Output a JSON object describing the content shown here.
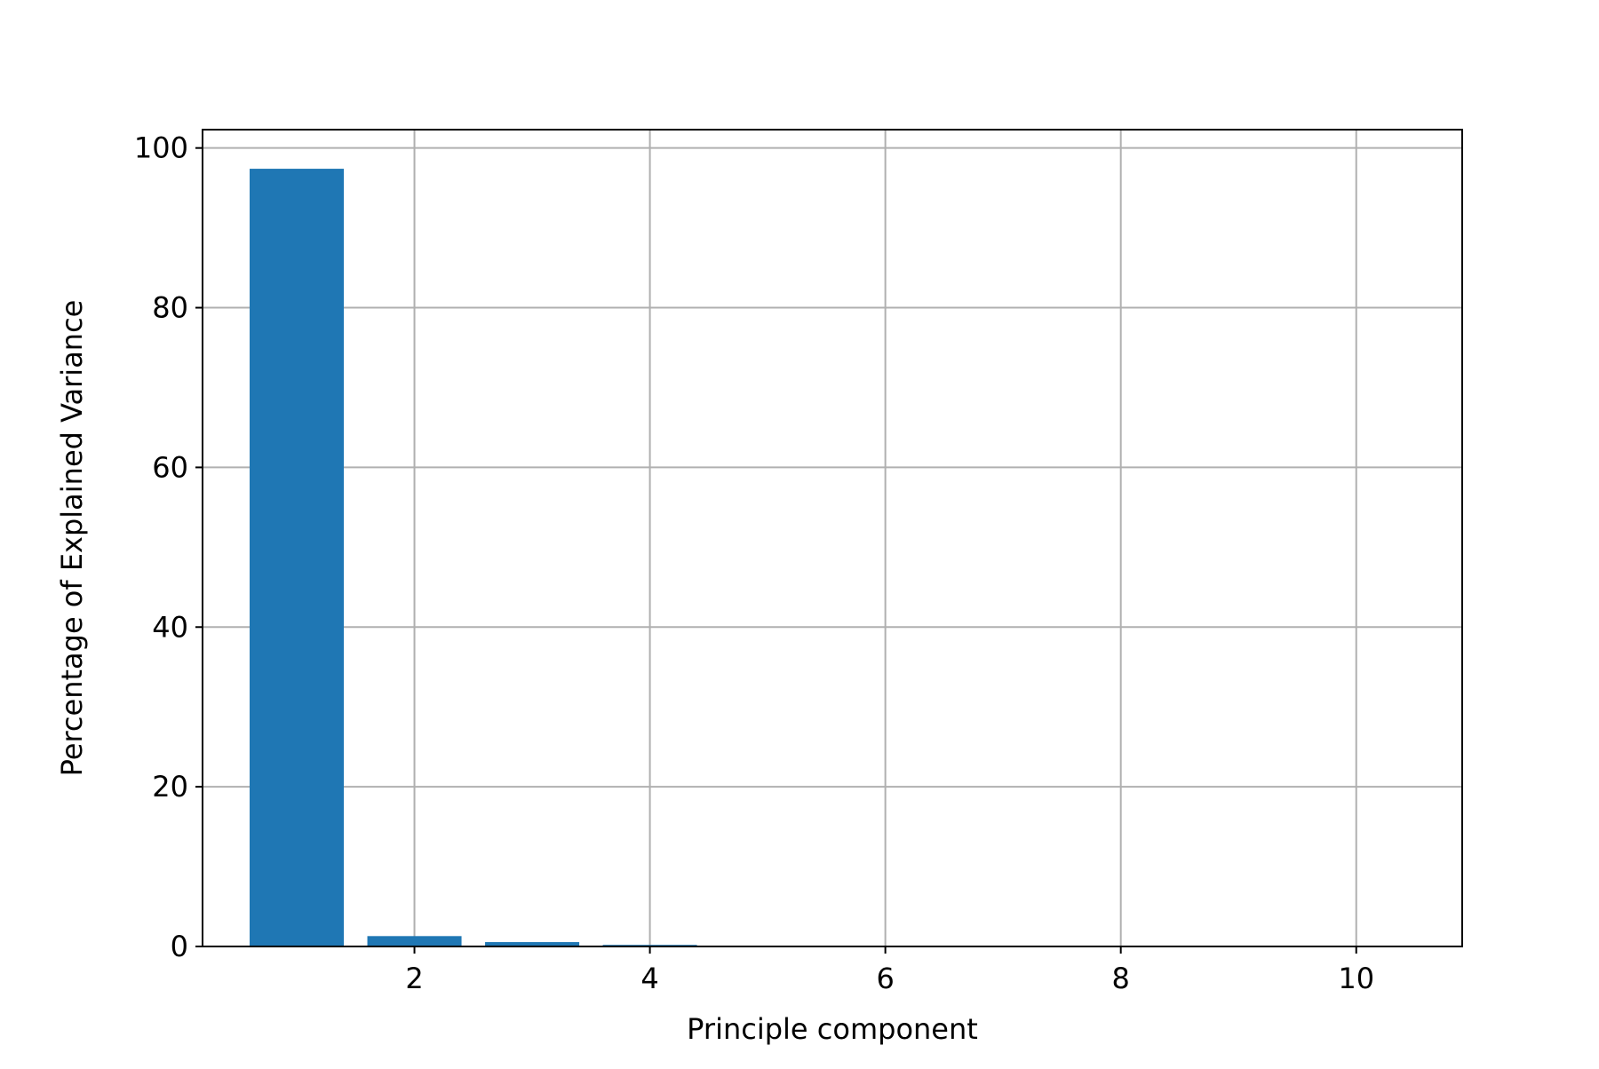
{
  "chart_data": {
    "type": "bar",
    "x": [
      1,
      2,
      3,
      4,
      5,
      6,
      7,
      8,
      9,
      10
    ],
    "values": [
      97.4,
      1.3,
      0.55,
      0.2,
      0.08,
      0.05,
      0.03,
      0.02,
      0.01,
      0.01
    ],
    "title": "",
    "xlabel": "Principle component",
    "ylabel": "Percentage of Explained Variance",
    "xlim": [
      0.2,
      10.9
    ],
    "ylim": [
      0,
      102.3
    ],
    "xticks": [
      2,
      4,
      6,
      8,
      10
    ],
    "xtick_labels": [
      "2",
      "4",
      "6",
      "8",
      "10"
    ],
    "yticks": [
      0,
      20,
      40,
      60,
      80,
      100
    ],
    "ytick_labels": [
      "0",
      "20",
      "40",
      "60",
      "80",
      "100"
    ],
    "bar_width": 0.8,
    "bar_color": "#1f77b4",
    "grid": true,
    "grid_color": "#b0b0b0",
    "legend": "none"
  }
}
